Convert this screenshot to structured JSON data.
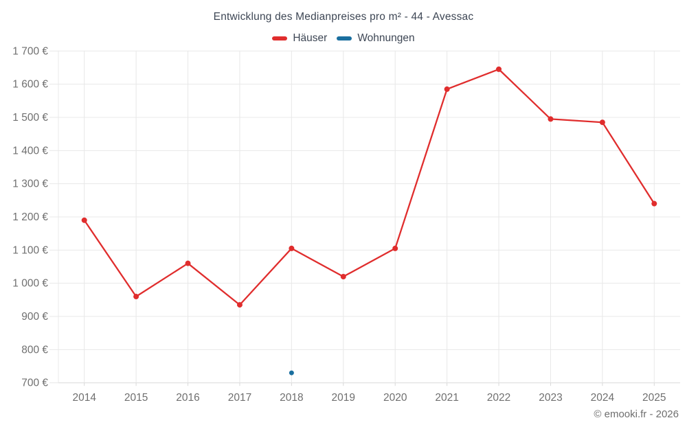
{
  "page": {
    "title": "Entwicklung des Medianpreises pro m² - 44 - Avessac",
    "copyright": "© emooki.fr - 2026"
  },
  "legend": {
    "items": [
      {
        "label": "Häuser",
        "color": "#e02d2d"
      },
      {
        "label": "Wohnungen",
        "color": "#1a6f9f"
      }
    ]
  },
  "chart_data": {
    "type": "line",
    "title": "Entwicklung des Medianpreises pro m² - 44 - Avessac",
    "categories": [
      "2014",
      "2015",
      "2016",
      "2017",
      "2018",
      "2019",
      "2020",
      "2021",
      "2022",
      "2023",
      "2024",
      "2025"
    ],
    "series": [
      {
        "name": "Häuser",
        "color": "#e02d2d",
        "values": [
          1190,
          960,
          1060,
          935,
          1105,
          1020,
          1105,
          1585,
          1645,
          1495,
          1485,
          1240
        ]
      },
      {
        "name": "Wohnungen",
        "color": "#1a6f9f",
        "values": [
          null,
          null,
          null,
          null,
          730,
          null,
          null,
          null,
          null,
          null,
          null,
          null
        ]
      }
    ],
    "xlabel": "",
    "ylabel": "",
    "ylim": [
      700,
      1700
    ],
    "ytick_step": 100,
    "ytick_suffix": " €",
    "grid": true,
    "legend_position": "top",
    "axis_text_color": "#6f6f6f",
    "grid_color": "#e8e8e8",
    "axis_line_color": "#d8d8d8",
    "copyright": "© emooki.fr - 2026"
  }
}
